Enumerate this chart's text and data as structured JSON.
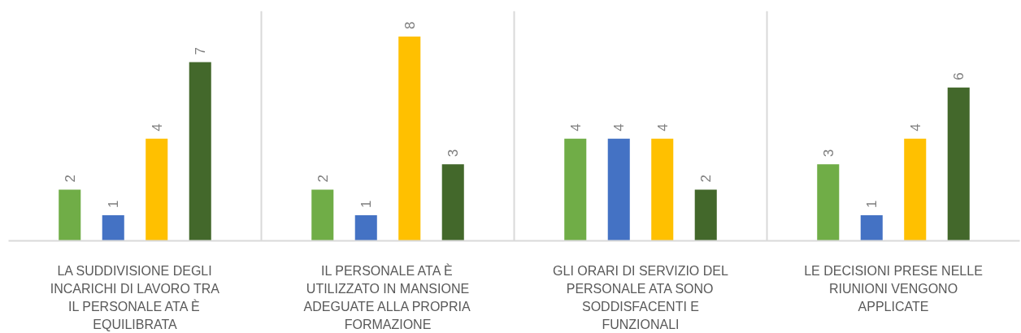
{
  "chart_data": {
    "type": "bar",
    "categories": [
      "LA SUDDIVISIONE DEGLI INCARICHI DI LAVORO TRA IL PERSONALE ATA È EQUILIBRATA",
      "IL PERSONALE ATA È UTILIZZATO IN MANSIONE ADEGUATE ALLA PROPRIA FORMAZIONE",
      "GLI ORARI DI SERVIZIO DEL PERSONALE ATA SONO SODDISFACENTI E FUNZIONALI",
      "LE DECISIONI PRESE NELLE RIUNIONI VENGONO APPLICATE"
    ],
    "series": [
      {
        "color": "#70ad47",
        "values": [
          2,
          2,
          4,
          3
        ]
      },
      {
        "color": "#4472c4",
        "values": [
          1,
          1,
          4,
          1
        ]
      },
      {
        "color": "#ffc000",
        "values": [
          4,
          8,
          4,
          4
        ]
      },
      {
        "color": "#43682b",
        "values": [
          7,
          3,
          2,
          6
        ]
      }
    ],
    "ylim": [
      0,
      9
    ],
    "data_labels": true,
    "grid": "x",
    "tick_labels": "x"
  }
}
